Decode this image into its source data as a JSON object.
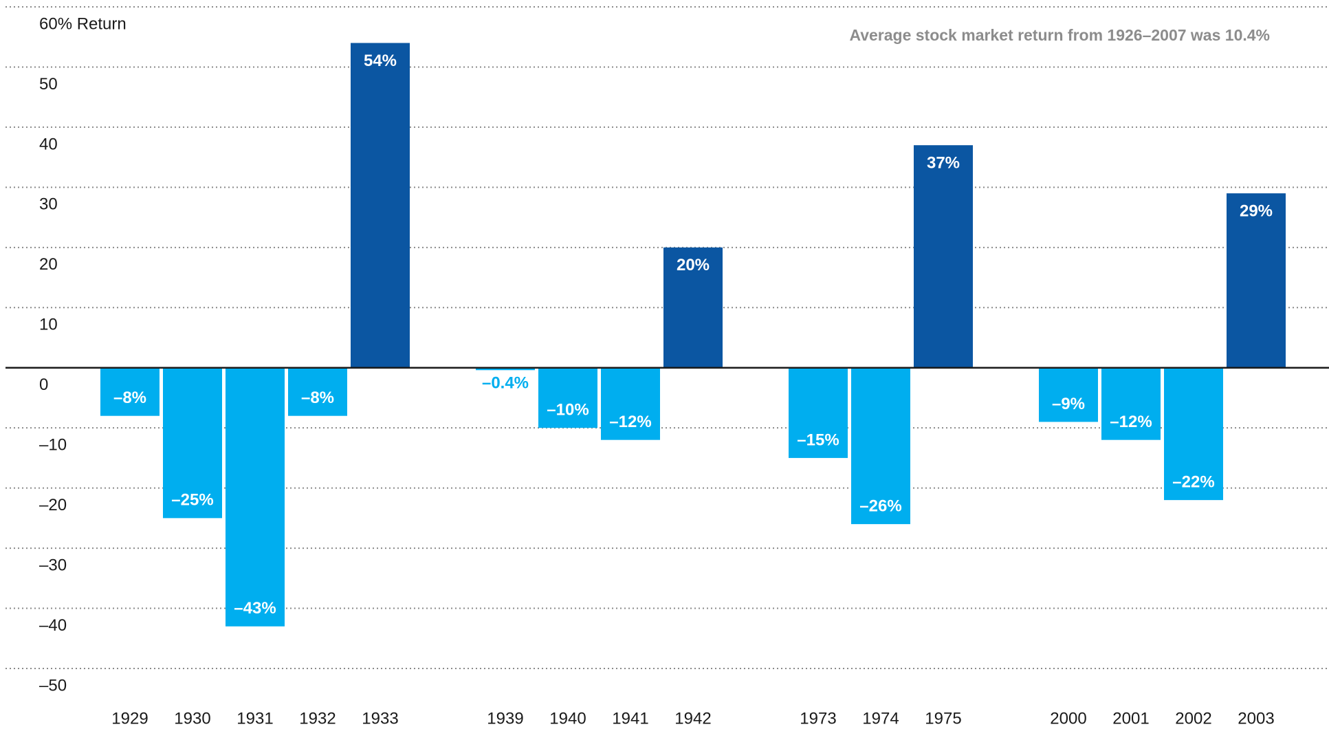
{
  "chart_data": {
    "type": "bar",
    "annotation": "Average stock market return from 1926–2007 was 10.4%",
    "categories": [
      "1929",
      "1930",
      "1931",
      "1932",
      "1933",
      null,
      "1939",
      "1940",
      "1941",
      "1942",
      null,
      "1973",
      "1974",
      "1975",
      null,
      "2000",
      "2001",
      "2002",
      "2003"
    ],
    "values": [
      -8,
      -25,
      -43,
      -8,
      54,
      null,
      -0.4,
      -10,
      -12,
      20,
      null,
      -15,
      -26,
      37,
      null,
      -9,
      -12,
      -22,
      29
    ],
    "value_labels": [
      "–8%",
      "–25%",
      "–43%",
      "–8%",
      "54%",
      null,
      "–0.4%",
      "–10%",
      "–12%",
      "20%",
      null,
      "–15%",
      "–26%",
      "37%",
      null,
      "–9%",
      "–12%",
      "–22%",
      "29%"
    ],
    "colors": {
      "positive": "#0b56a2",
      "negative": "#00aeef"
    },
    "ylim": [
      -50,
      60
    ],
    "yticks": [
      {
        "value": 60,
        "label": "60% Return"
      },
      50,
      40,
      30,
      20,
      10,
      0,
      {
        "value": -10,
        "label": "–10"
      },
      {
        "value": -20,
        "label": "–20"
      },
      {
        "value": -30,
        "label": "–30"
      },
      {
        "value": -40,
        "label": "–40"
      },
      {
        "value": -50,
        "label": "–50"
      }
    ],
    "grid": true
  }
}
